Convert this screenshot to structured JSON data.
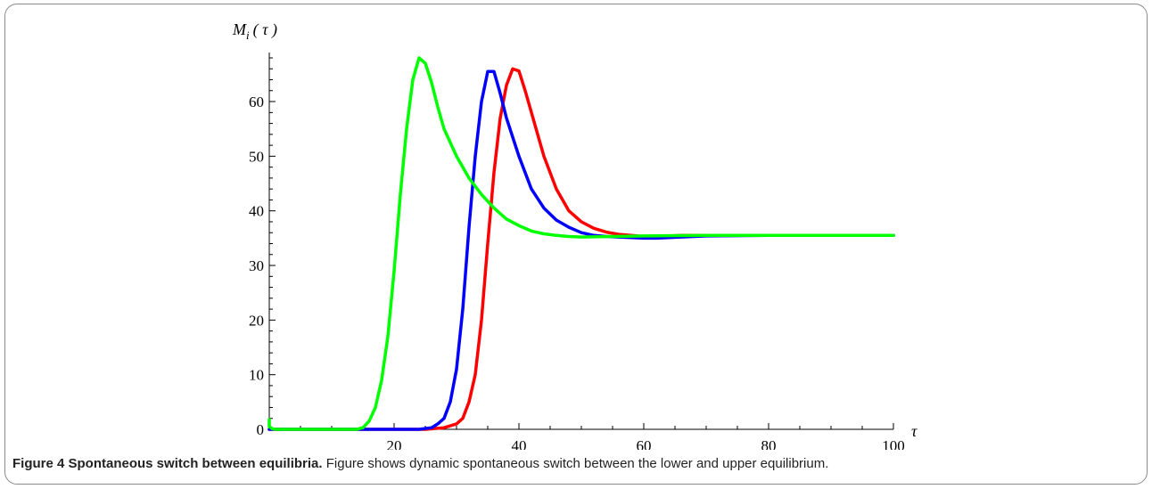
{
  "chart_data": {
    "type": "line",
    "ylabel": "M",
    "ylabel_sub": "i",
    "ylabel_arg": "( τ )",
    "xlabel": "τ",
    "xlim": [
      0,
      100
    ],
    "ylim": [
      0,
      68
    ],
    "x_ticks": [
      20,
      40,
      60,
      80,
      100
    ],
    "y_ticks": [
      0,
      10,
      20,
      30,
      40,
      50,
      60
    ],
    "x_tick_labels": [
      "20",
      "40",
      "60",
      "80",
      "100"
    ],
    "y_tick_labels": [
      "0",
      "10",
      "20",
      "30",
      "40",
      "50",
      "60"
    ],
    "grid": false,
    "series": [
      {
        "color": "#ff0000",
        "x": [
          0,
          25,
          28,
          30,
          31,
          32,
          33,
          34,
          35,
          36,
          37,
          38,
          39,
          40,
          41,
          42,
          43,
          44,
          46,
          48,
          50,
          52,
          54,
          56,
          58,
          60,
          62,
          64,
          66,
          70,
          80,
          100
        ],
        "y": [
          0,
          0,
          0.3,
          1,
          2,
          5,
          10,
          20,
          34,
          47,
          57,
          63,
          66,
          65.6,
          62,
          58,
          54,
          50,
          44,
          40,
          38,
          36.8,
          36.1,
          35.7,
          35.5,
          35.3,
          35.3,
          35.4,
          35.5,
          35.5,
          35.5,
          35.5
        ]
      },
      {
        "color": "#0000ff",
        "x": [
          0,
          24,
          26,
          27,
          28,
          29,
          30,
          31,
          32,
          33,
          34,
          35,
          36,
          37,
          38,
          40,
          42,
          44,
          46,
          48,
          50,
          52,
          54,
          56,
          58,
          60,
          62,
          64,
          66,
          70,
          80,
          100
        ],
        "y": [
          0,
          0,
          0.3,
          1,
          2,
          5,
          11,
          22,
          37,
          50,
          60,
          65.5,
          65.5,
          61.5,
          57,
          50,
          44,
          40.5,
          38.3,
          37,
          36,
          35.5,
          35.3,
          35.2,
          35.1,
          35,
          35,
          35.1,
          35.2,
          35.4,
          35.5,
          35.5
        ]
      },
      {
        "color": "#00ff00",
        "x": [
          0,
          0,
          0.5,
          1,
          14,
          15,
          16,
          17,
          18,
          19,
          20,
          21,
          22,
          23,
          24,
          25,
          26,
          27,
          28,
          30,
          32,
          34,
          36,
          38,
          40,
          42,
          44,
          46,
          48,
          50,
          55,
          60,
          70,
          80,
          100
        ],
        "y": [
          1.8,
          0.5,
          0.1,
          0,
          0,
          0.3,
          1.5,
          4,
          9,
          17,
          29,
          43,
          55,
          64,
          68,
          67,
          63.5,
          59,
          55,
          50,
          46,
          43,
          40.5,
          38.5,
          37.3,
          36.3,
          35.8,
          35.5,
          35.3,
          35.2,
          35.3,
          35.4,
          35.5,
          35.5,
          35.5
        ]
      }
    ]
  },
  "caption": {
    "title": "Figure 4 Spontaneous switch between equilibria.",
    "text": " Figure shows dynamic spontaneous switch between the lower and upper equilibrium."
  }
}
